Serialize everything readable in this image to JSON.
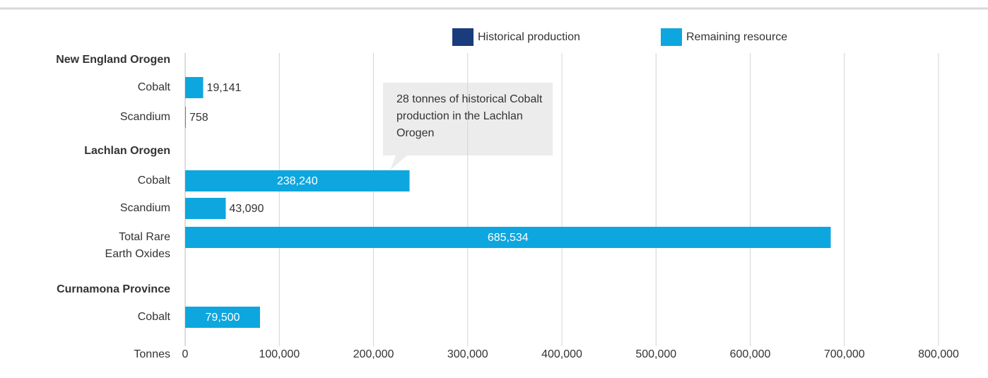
{
  "chart_data": {
    "type": "bar",
    "orientation": "horizontal",
    "stacked": true,
    "annotation": "28 tonnes of historical Cobalt production in the Lachlan Orogen",
    "xlabel": "Tonnes",
    "groups": [
      {
        "name": "New England Orogen",
        "categories": [
          "Cobalt",
          "Scandium"
        ]
      },
      {
        "name": "Lachlan Orogen",
        "categories": [
          "Cobalt",
          "Scandium",
          "Total Rare Earth Oxides"
        ]
      },
      {
        "name": "Curnamona Province",
        "categories": [
          "Cobalt"
        ]
      }
    ],
    "series": [
      {
        "name": "Historical production",
        "color": "#1b3c7c",
        "values": [
          null,
          null,
          28,
          null,
          null,
          null
        ]
      },
      {
        "name": "Remaining resource",
        "color": "#0ea6df",
        "values": [
          19141,
          758,
          238240,
          43090,
          685534,
          79500
        ],
        "value_labels": [
          "19,141",
          "758",
          "238,240",
          "43,090",
          "685,534",
          "79,500"
        ]
      }
    ],
    "xlim": [
      0,
      800000
    ],
    "xticks": [
      0,
      {
        "value": 100000,
        "label": "100,000"
      },
      {
        "value": 200000,
        "label": "200,000"
      },
      {
        "value": 300000,
        "label": "300,000"
      },
      {
        "value": 400000,
        "label": "400,000"
      },
      {
        "value": 500000,
        "label": "500,000"
      },
      {
        "value": 600000,
        "label": "600,000"
      },
      {
        "value": 700000,
        "label": "700,000"
      },
      {
        "value": 800000,
        "label": "800,000"
      }
    ],
    "grid": true,
    "legend": "top"
  }
}
